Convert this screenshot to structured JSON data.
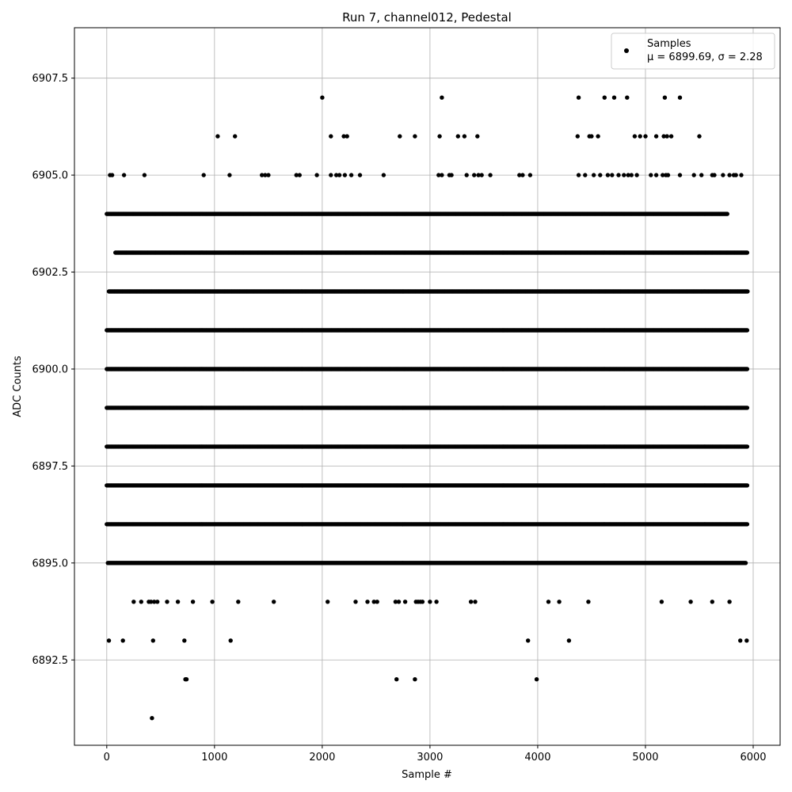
{
  "chart_data": {
    "type": "scatter",
    "title": "Run 7, channel012, Pedestal",
    "xlabel": "Sample #",
    "ylabel": "ADC Counts",
    "xlim": [
      -300,
      6250
    ],
    "ylim": [
      6890.3,
      6908.8
    ],
    "xticks": [
      0,
      1000,
      2000,
      3000,
      4000,
      5000,
      6000
    ],
    "xtick_labels": [
      "0",
      "1000",
      "2000",
      "3000",
      "4000",
      "5000",
      "6000"
    ],
    "yticks": [
      6892.5,
      6895.0,
      6897.5,
      6900.0,
      6902.5,
      6905.0,
      6907.5
    ],
    "ytick_labels": [
      "6892.5",
      "6895.0",
      "6897.5",
      "6900.0",
      "6902.5",
      "6905.0",
      "6907.5"
    ],
    "grid": true,
    "legend": {
      "position": "top-right",
      "entries": [
        {
          "line1": "Samples",
          "line2": "μ = 6899.69, σ = 2.28"
        }
      ]
    },
    "series": [
      {
        "name": "Samples",
        "color": "#000000",
        "marker": "circle",
        "x_range": [
          0,
          5950
        ],
        "band_x_ranges": [
          {
            "y": 6900,
            "x": [
              0,
              5950
            ]
          },
          {
            "y": 6901,
            "x": [
              0,
              5950
            ]
          },
          {
            "y": 6899,
            "x": [
              0,
              5950
            ]
          },
          {
            "y": 6902,
            "x": [
              20,
              5950
            ]
          },
          {
            "y": 6898,
            "x": [
              0,
              5950
            ]
          },
          {
            "y": 6897,
            "x": [
              0,
              5950
            ]
          },
          {
            "y": 6903,
            "x": [
              80,
              5950
            ]
          },
          {
            "y": 6896,
            "x": [
              0,
              5950
            ]
          },
          {
            "y": 6895,
            "x": [
              10,
              5930
            ]
          },
          {
            "y": 6904,
            "x": [
              0,
              5760
            ]
          }
        ],
        "points": [
          [
            20,
            6893
          ],
          [
            150,
            6893
          ],
          [
            430,
            6893
          ],
          [
            720,
            6893
          ],
          [
            1150,
            6893
          ],
          [
            3910,
            6893
          ],
          [
            4290,
            6893
          ],
          [
            5880,
            6893
          ],
          [
            5940,
            6893
          ],
          [
            730,
            6892
          ],
          [
            740,
            6892
          ],
          [
            2690,
            6892
          ],
          [
            2860,
            6892
          ],
          [
            3990,
            6892
          ],
          [
            420,
            6891
          ],
          [
            250,
            6894
          ],
          [
            320,
            6894
          ],
          [
            390,
            6894
          ],
          [
            410,
            6894
          ],
          [
            440,
            6894
          ],
          [
            470,
            6894
          ],
          [
            560,
            6894
          ],
          [
            660,
            6894
          ],
          [
            800,
            6894
          ],
          [
            980,
            6894
          ],
          [
            1220,
            6894
          ],
          [
            1550,
            6894
          ],
          [
            2050,
            6894
          ],
          [
            2310,
            6894
          ],
          [
            2420,
            6894
          ],
          [
            2480,
            6894
          ],
          [
            2510,
            6894
          ],
          [
            2680,
            6894
          ],
          [
            2710,
            6894
          ],
          [
            2770,
            6894
          ],
          [
            2870,
            6894
          ],
          [
            2890,
            6894
          ],
          [
            2910,
            6894
          ],
          [
            2930,
            6894
          ],
          [
            3000,
            6894
          ],
          [
            3060,
            6894
          ],
          [
            3380,
            6894
          ],
          [
            3420,
            6894
          ],
          [
            4100,
            6894
          ],
          [
            4200,
            6894
          ],
          [
            4470,
            6894
          ],
          [
            5150,
            6894
          ],
          [
            5420,
            6894
          ],
          [
            5620,
            6894
          ],
          [
            5780,
            6894
          ],
          [
            30,
            6905
          ],
          [
            50,
            6905
          ],
          [
            160,
            6905
          ],
          [
            350,
            6905
          ],
          [
            900,
            6905
          ],
          [
            1140,
            6905
          ],
          [
            1440,
            6905
          ],
          [
            1470,
            6905
          ],
          [
            1500,
            6905
          ],
          [
            1760,
            6905
          ],
          [
            1790,
            6905
          ],
          [
            1950,
            6905
          ],
          [
            2080,
            6905
          ],
          [
            2130,
            6905
          ],
          [
            2160,
            6905
          ],
          [
            2210,
            6905
          ],
          [
            2270,
            6905
          ],
          [
            2350,
            6905
          ],
          [
            2570,
            6905
          ],
          [
            3080,
            6905
          ],
          [
            3110,
            6905
          ],
          [
            3180,
            6905
          ],
          [
            3200,
            6905
          ],
          [
            3340,
            6905
          ],
          [
            3410,
            6905
          ],
          [
            3450,
            6905
          ],
          [
            3480,
            6905
          ],
          [
            3560,
            6905
          ],
          [
            3830,
            6905
          ],
          [
            3860,
            6905
          ],
          [
            3930,
            6905
          ],
          [
            4380,
            6905
          ],
          [
            4440,
            6905
          ],
          [
            4520,
            6905
          ],
          [
            4580,
            6905
          ],
          [
            4650,
            6905
          ],
          [
            4690,
            6905
          ],
          [
            4750,
            6905
          ],
          [
            4800,
            6905
          ],
          [
            4840,
            6905
          ],
          [
            4870,
            6905
          ],
          [
            4920,
            6905
          ],
          [
            5050,
            6905
          ],
          [
            5100,
            6905
          ],
          [
            5160,
            6905
          ],
          [
            5190,
            6905
          ],
          [
            5210,
            6905
          ],
          [
            5320,
            6905
          ],
          [
            5450,
            6905
          ],
          [
            5520,
            6905
          ],
          [
            5620,
            6905
          ],
          [
            5640,
            6905
          ],
          [
            5720,
            6905
          ],
          [
            5780,
            6905
          ],
          [
            5820,
            6905
          ],
          [
            5840,
            6905
          ],
          [
            5890,
            6905
          ],
          [
            1030,
            6906
          ],
          [
            1190,
            6906
          ],
          [
            2080,
            6906
          ],
          [
            2200,
            6906
          ],
          [
            2230,
            6906
          ],
          [
            2720,
            6906
          ],
          [
            2860,
            6906
          ],
          [
            3090,
            6906
          ],
          [
            3260,
            6906
          ],
          [
            3320,
            6906
          ],
          [
            3440,
            6906
          ],
          [
            4370,
            6906
          ],
          [
            4480,
            6906
          ],
          [
            4500,
            6906
          ],
          [
            4560,
            6906
          ],
          [
            4900,
            6906
          ],
          [
            4950,
            6906
          ],
          [
            5000,
            6906
          ],
          [
            5100,
            6906
          ],
          [
            5170,
            6906
          ],
          [
            5200,
            6906
          ],
          [
            5240,
            6906
          ],
          [
            5500,
            6906
          ],
          [
            2000,
            6907
          ],
          [
            3110,
            6907
          ],
          [
            4380,
            6907
          ],
          [
            4620,
            6907
          ],
          [
            4710,
            6907
          ],
          [
            4830,
            6907
          ],
          [
            5180,
            6907
          ],
          [
            5320,
            6907
          ]
        ]
      }
    ]
  }
}
